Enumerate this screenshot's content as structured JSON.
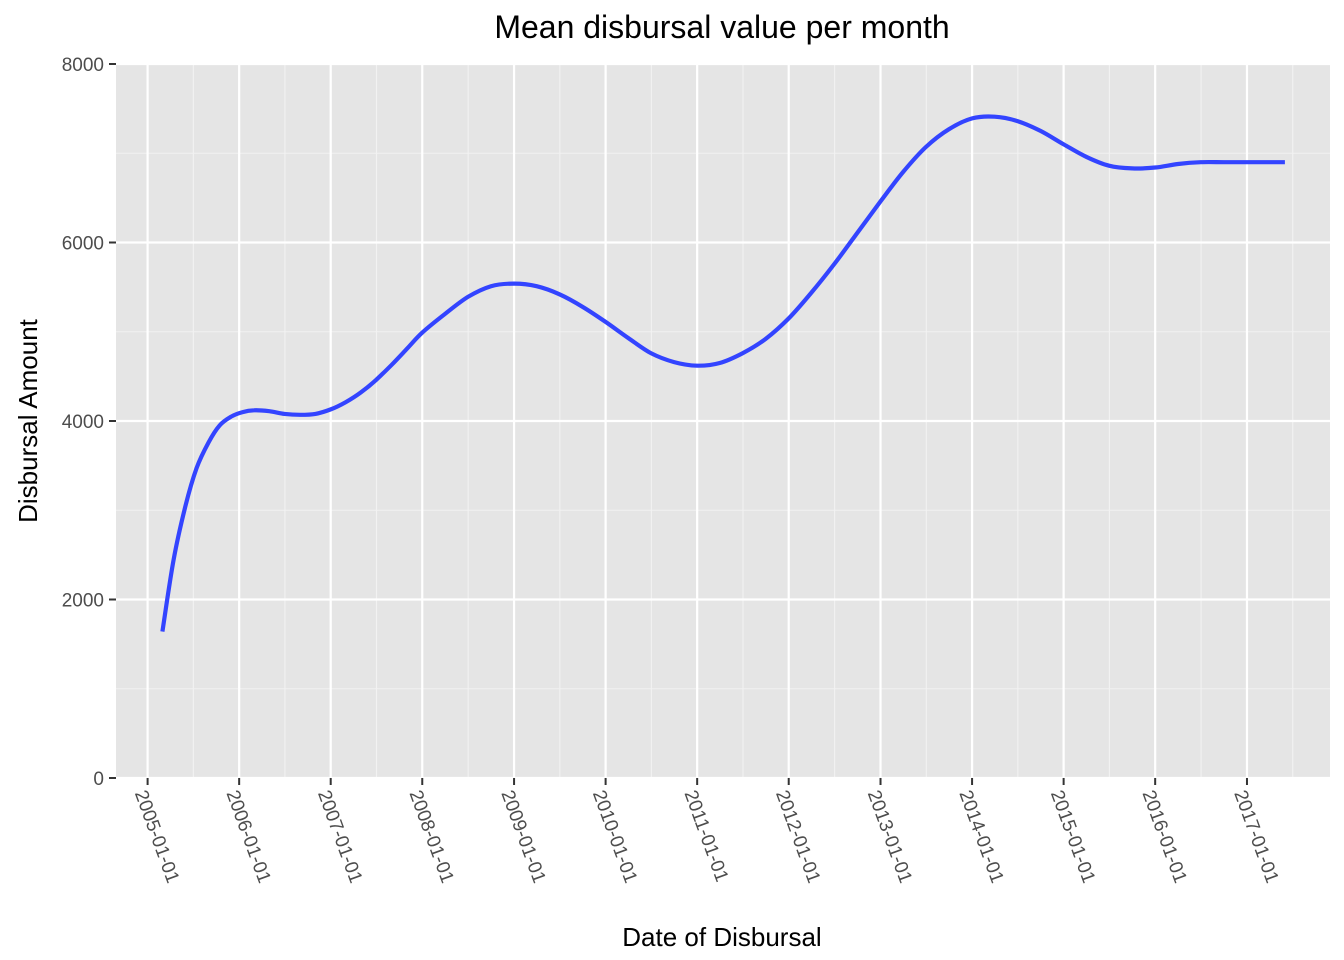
{
  "chart_data": {
    "type": "line",
    "title": "Mean disbursal value per month",
    "xlabel": "Date of Disbursal",
    "ylabel": "Disbursal Amount",
    "x_scale": "date",
    "xlim": [
      "2004-08-28",
      "2017-11-28"
    ],
    "ylim": [
      0,
      8000
    ],
    "y_ticks": [
      0,
      2000,
      4000,
      6000,
      8000
    ],
    "x_ticks": [
      "2005-01-01",
      "2006-01-01",
      "2007-01-01",
      "2008-01-01",
      "2009-01-01",
      "2010-01-01",
      "2011-01-01",
      "2012-01-01",
      "2013-01-01",
      "2014-01-01",
      "2015-01-01",
      "2016-01-01",
      "2017-01-01"
    ],
    "grid": true,
    "background": "#e5e5e5",
    "line_color": "#3344ff",
    "series": [
      {
        "x": [
          "2005-03-01",
          "2005-04-15",
          "2005-06-01",
          "2005-07-15",
          "2005-09-01",
          "2005-10-15",
          "2005-12-01",
          "2006-01-15",
          "2006-03-01",
          "2006-05-01",
          "2006-07-01",
          "2006-09-01",
          "2006-11-01",
          "2007-01-01",
          "2007-03-01",
          "2007-05-01",
          "2007-07-01",
          "2007-09-01",
          "2007-11-01",
          "2008-01-01",
          "2008-04-01",
          "2008-07-01",
          "2008-10-01",
          "2009-01-01",
          "2009-04-01",
          "2009-07-01",
          "2009-10-01",
          "2010-01-01",
          "2010-04-01",
          "2010-07-01",
          "2010-10-01",
          "2011-01-01",
          "2011-04-01",
          "2011-07-01",
          "2011-10-01",
          "2012-01-01",
          "2012-04-01",
          "2012-07-01",
          "2012-10-01",
          "2013-01-01",
          "2013-04-01",
          "2013-07-01",
          "2013-10-01",
          "2014-01-01",
          "2014-04-01",
          "2014-07-01",
          "2014-10-01",
          "2015-01-01",
          "2015-04-01",
          "2015-07-01",
          "2015-10-01",
          "2016-01-01",
          "2016-04-01",
          "2016-07-01",
          "2016-10-01",
          "2017-01-01",
          "2017-04-01",
          "2017-06-01"
        ],
        "values": [
          1640,
          2450,
          3050,
          3470,
          3760,
          3950,
          4050,
          4100,
          4120,
          4110,
          4080,
          4070,
          4080,
          4130,
          4210,
          4320,
          4460,
          4630,
          4810,
          4990,
          5200,
          5390,
          5510,
          5540,
          5510,
          5420,
          5280,
          5110,
          4930,
          4760,
          4660,
          4620,
          4650,
          4760,
          4920,
          5150,
          5440,
          5760,
          6110,
          6460,
          6790,
          7070,
          7270,
          7390,
          7410,
          7360,
          7250,
          7100,
          6960,
          6860,
          6830,
          6840,
          6880,
          6900,
          6900,
          6900,
          6900,
          6900
        ]
      }
    ]
  }
}
